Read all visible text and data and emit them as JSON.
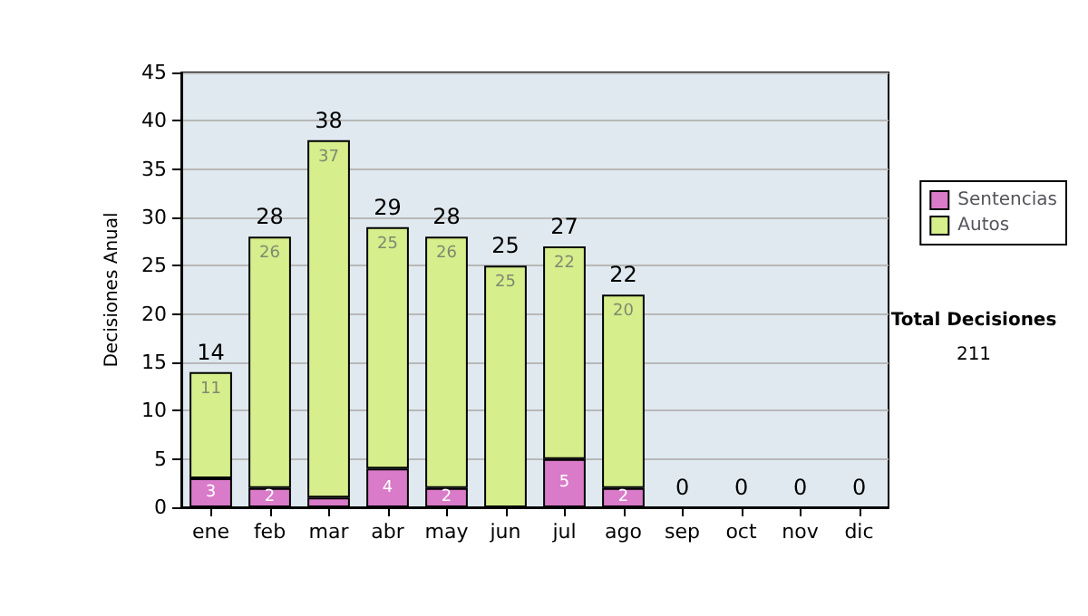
{
  "chart_data": {
    "type": "bar",
    "ylabel": "Decisiones Anual",
    "categories": [
      "ene",
      "feb",
      "mar",
      "abr",
      "may",
      "jun",
      "jul",
      "ago",
      "sep",
      "oct",
      "nov",
      "dic"
    ],
    "series": [
      {
        "name": "Sentencias",
        "color": "#d97bc9",
        "values": [
          3,
          2,
          1,
          4,
          2,
          0,
          5,
          2,
          0,
          0,
          0,
          0
        ],
        "value_labels": [
          "3",
          "2",
          null,
          "4",
          "2",
          null,
          "5",
          "2",
          null,
          null,
          null,
          null
        ]
      },
      {
        "name": "Autos",
        "color": "#d6ee8c",
        "values": [
          11,
          26,
          37,
          25,
          26,
          25,
          22,
          20,
          0,
          0,
          0,
          0
        ],
        "value_labels": [
          "11",
          "26",
          "37",
          "25",
          "26",
          "25",
          "22",
          "20",
          null,
          null,
          null,
          null
        ]
      }
    ],
    "totals": [
      "14",
      "28",
      "38",
      "29",
      "28",
      "25",
      "27",
      "22",
      "0",
      "0",
      "0",
      "0"
    ],
    "stacked": true,
    "ylim": [
      0,
      45
    ],
    "yticks": [
      0,
      5,
      10,
      15,
      20,
      25,
      30,
      35,
      40,
      45
    ],
    "grid": "y",
    "legend": "right",
    "annotations": [
      "Total Decisiones",
      "211"
    ]
  }
}
